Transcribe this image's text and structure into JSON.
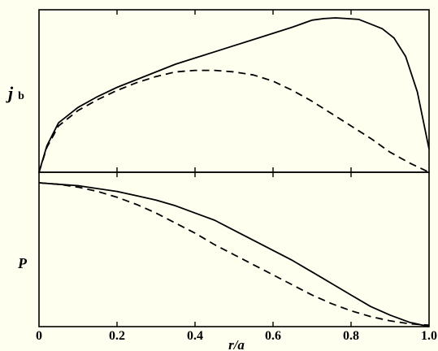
{
  "chart_data": [
    {
      "type": "line",
      "title": "",
      "ylabel_main": "j",
      "ylabel_sub": "b",
      "xlabel": "",
      "xlim": [
        0,
        1.0
      ],
      "ylim": [
        0,
        1.0
      ],
      "grid": false,
      "series": [
        {
          "style": "solid",
          "x": [
            0,
            0.02,
            0.05,
            0.1,
            0.15,
            0.2,
            0.25,
            0.3,
            0.35,
            0.4,
            0.45,
            0.5,
            0.55,
            0.6,
            0.65,
            0.7,
            0.73,
            0.76,
            0.79,
            0.82,
            0.85,
            0.88,
            0.91,
            0.94,
            0.97,
            1.0
          ],
          "y": [
            0,
            0.17,
            0.32,
            0.42,
            0.49,
            0.55,
            0.6,
            0.65,
            0.7,
            0.74,
            0.78,
            0.82,
            0.86,
            0.9,
            0.94,
            0.985,
            0.995,
            1.0,
            0.995,
            0.99,
            0.96,
            0.93,
            0.87,
            0.75,
            0.52,
            0.15
          ]
        },
        {
          "style": "dashed",
          "x": [
            0,
            0.02,
            0.05,
            0.1,
            0.15,
            0.2,
            0.25,
            0.3,
            0.35,
            0.4,
            0.45,
            0.5,
            0.55,
            0.6,
            0.65,
            0.7,
            0.75,
            0.8,
            0.85,
            0.9,
            0.95,
            1.0
          ],
          "y": [
            0,
            0.16,
            0.3,
            0.4,
            0.47,
            0.53,
            0.58,
            0.62,
            0.65,
            0.66,
            0.66,
            0.65,
            0.63,
            0.59,
            0.53,
            0.46,
            0.38,
            0.3,
            0.22,
            0.13,
            0.06,
            0.0
          ]
        }
      ]
    },
    {
      "type": "line",
      "title": "",
      "ylabel": "P",
      "xlabel": "r/a",
      "xlim": [
        0,
        1.0
      ],
      "ylim": [
        0,
        1.0
      ],
      "x_ticks": [
        "0",
        "0.2",
        "0.4",
        "0.6",
        "0.8",
        "1.0"
      ],
      "grid": false,
      "series": [
        {
          "style": "solid",
          "x": [
            0,
            0.05,
            0.1,
            0.15,
            0.2,
            0.25,
            0.3,
            0.35,
            0.4,
            0.45,
            0.5,
            0.55,
            0.6,
            0.65,
            0.7,
            0.75,
            0.8,
            0.85,
            0.9,
            0.95,
            1.0
          ],
          "y": [
            1.0,
            0.99,
            0.98,
            0.96,
            0.94,
            0.91,
            0.88,
            0.84,
            0.79,
            0.74,
            0.67,
            0.6,
            0.53,
            0.46,
            0.38,
            0.3,
            0.22,
            0.14,
            0.08,
            0.03,
            0.0
          ]
        },
        {
          "style": "dashed",
          "x": [
            0,
            0.05,
            0.1,
            0.15,
            0.2,
            0.25,
            0.3,
            0.35,
            0.4,
            0.45,
            0.5,
            0.55,
            0.6,
            0.65,
            0.7,
            0.75,
            0.8,
            0.85,
            0.9,
            0.95,
            1.0
          ],
          "y": [
            1.0,
            0.99,
            0.97,
            0.94,
            0.9,
            0.85,
            0.79,
            0.72,
            0.65,
            0.57,
            0.5,
            0.43,
            0.36,
            0.29,
            0.22,
            0.16,
            0.11,
            0.07,
            0.04,
            0.02,
            0.01
          ]
        }
      ]
    }
  ]
}
